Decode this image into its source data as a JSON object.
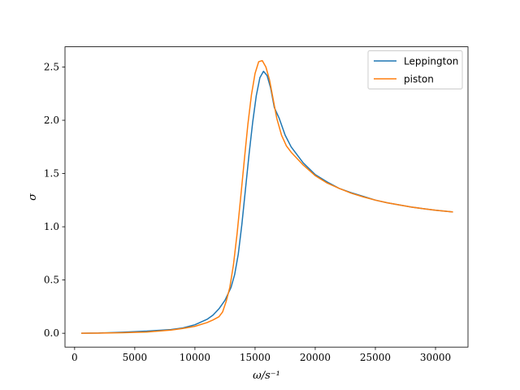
{
  "chart_data": {
    "type": "line",
    "xlabel": "ω/s⁻¹",
    "ylabel": "σ",
    "xlim": [
      -800,
      32700
    ],
    "ylim": [
      -0.13,
      2.69
    ],
    "xticks": [
      0,
      5000,
      10000,
      15000,
      20000,
      25000,
      30000
    ],
    "yticks": [
      0.0,
      0.5,
      1.0,
      1.5,
      2.0,
      2.5
    ],
    "xtick_labels": [
      "0",
      "5000",
      "10000",
      "15000",
      "20000",
      "25000",
      "30000"
    ],
    "ytick_labels": [
      "0.0",
      "0.5",
      "1.0",
      "1.5",
      "2.0",
      "2.5"
    ],
    "legend_position": "top-right",
    "grid": false,
    "series": [
      {
        "name": "Leppington",
        "color": "#1f77b4",
        "x": [
          600,
          2000,
          4000,
          6000,
          8000,
          9000,
          10000,
          11000,
          11500,
          12000,
          12500,
          13000,
          13300,
          13600,
          13900,
          14200,
          14500,
          14800,
          15100,
          15400,
          15700,
          16000,
          16300,
          16600,
          17000,
          17500,
          18000,
          19000,
          20000,
          21000,
          22000,
          23000,
          24000,
          25000,
          26000,
          27000,
          28000,
          29000,
          30000,
          31400
        ],
        "y": [
          0.0,
          0.002,
          0.01,
          0.02,
          0.035,
          0.05,
          0.08,
          0.13,
          0.17,
          0.23,
          0.31,
          0.43,
          0.55,
          0.74,
          1.02,
          1.35,
          1.68,
          1.98,
          2.23,
          2.4,
          2.46,
          2.42,
          2.3,
          2.12,
          2.02,
          1.86,
          1.75,
          1.6,
          1.49,
          1.42,
          1.36,
          1.32,
          1.285,
          1.25,
          1.225,
          1.205,
          1.185,
          1.17,
          1.155,
          1.14
        ]
      },
      {
        "name": "piston",
        "color": "#ff7f0e",
        "x": [
          600,
          2000,
          4000,
          6000,
          8000,
          9000,
          10000,
          11000,
          11500,
          12000,
          12300,
          12600,
          12900,
          13200,
          13500,
          13800,
          14100,
          14400,
          14700,
          15000,
          15300,
          15600,
          15900,
          16200,
          16500,
          16800,
          17200,
          17600,
          18000,
          19000,
          20000,
          21000,
          22000,
          23000,
          24000,
          25000,
          26000,
          27000,
          28000,
          29000,
          30000,
          31400
        ],
        "y": [
          0.0,
          0.001,
          0.005,
          0.012,
          0.03,
          0.045,
          0.065,
          0.1,
          0.125,
          0.155,
          0.2,
          0.3,
          0.43,
          0.64,
          0.93,
          1.27,
          1.62,
          1.96,
          2.24,
          2.44,
          2.55,
          2.56,
          2.5,
          2.38,
          2.2,
          2.02,
          1.86,
          1.76,
          1.7,
          1.58,
          1.48,
          1.41,
          1.36,
          1.315,
          1.28,
          1.25,
          1.225,
          1.205,
          1.185,
          1.17,
          1.155,
          1.14
        ]
      }
    ]
  }
}
